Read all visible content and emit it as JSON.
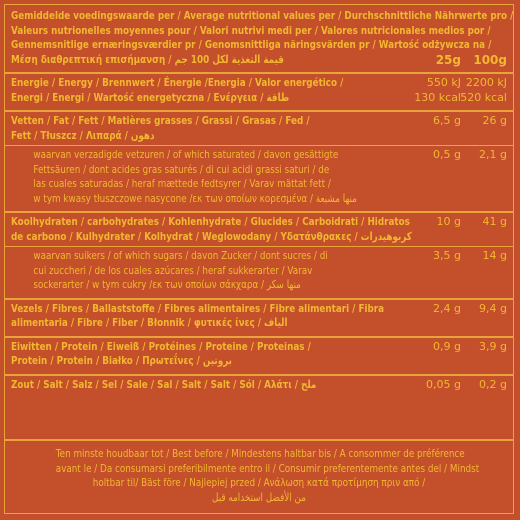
{
  "header": {
    "lines": [
      "Gemiddelde voedingswaarde per / Average nutritional values per / Durchschnittliche Nährwerte pro /",
      "Valeurs nutrionelles moyennes pour / Valori nutrivi medi per / Valores nutricionales medios por /",
      "Gennemsnitlige ernæringsværdier pr / Genomsnittliga näringsvärden pr / Wartość odżywcza na /",
      "Μέση διαθρεπτική επισήμανση / قيمة التغذية لكل 100 جم"
    ],
    "per_25g": "25g",
    "per_100g": "100g"
  },
  "rows": [
    {
      "lines": [
        "Energie / Energy / Brennwert / Énergie  /Energia / Valor energético /",
        "Energi / Energi / Wartość energetyczna / Ενέργεια / طاقة"
      ],
      "per_25g": [
        "550 kJ",
        "130 kcal"
      ],
      "per_100g": [
        "2200 kJ",
        "520 kcal"
      ]
    },
    {
      "lines": [
        "Vetten / Fat / Fett / Matières grasses / Grassi / Grasas / Fed /",
        "Fett / Tłuszcz / Λιπαρά / دهون"
      ],
      "per_25g": [
        "6,5 g"
      ],
      "per_100g": [
        "26 g"
      ]
    },
    {
      "lines": [
        "waarvan verzadigde vetzuren / of which saturated / davon gesättigte",
        "Fettsäuren / dont acides gras saturés / di cui acidi grassi saturi / de",
        "las cuales saturadas / heraf mættede fedtsyrer / Varav mättat fett /",
        "w tym kwasy tłuszczowe nasycone /εκ των οποίων κορεσμένα / منها مشبعة"
      ],
      "per_25g": [
        "0,5 g"
      ],
      "per_100g": [
        "2,1 g"
      ]
    },
    {
      "lines": [
        "Koolhydraten / carbohydrates / Kohlenhydrate / Glucides / Carboidrati / Hidratos",
        "de carbono / Kulhydrater / Kolhydrat / Weglowodany / Υδατάνθρακες / كربوهيدرات"
      ],
      "per_25g": [
        "10 g"
      ],
      "per_100g": [
        "41 g"
      ]
    },
    {
      "lines": [
        "waarvan suikers / of which sugars / davon Zucker / dont sucres / di",
        "cui zuccheri / de los cuales azúcares / heraf sukkerarter / Varav",
        "sockerarter / w tym cukry /εκ των οποίων σάκχαρα / منها سكر"
      ],
      "per_25g": [
        "3,5 g"
      ],
      "per_100g": [
        "14 g"
      ]
    },
    {
      "lines": [
        "Vezels / Fibres / Ballaststoffe / Fibres alimentaires / Fibre alimentari / Fibra",
        "alimentaria / Fibre / Fiber / Błonnik / φυτικές ίνες / الياف"
      ],
      "per_25g": [
        "2,4 g"
      ],
      "per_100g": [
        "9,4 g"
      ]
    },
    {
      "lines": [
        "Eiwitten / Protein / Eiweiß / Protéines / Proteine / Proteinas /",
        "Protein / Protein / Białko / Πρωτεΐνες / بروتين"
      ],
      "per_25g": [
        "0,9 g"
      ],
      "per_100g": [
        "3,9 g"
      ]
    },
    {
      "lines": [
        "Zout / Salt / Salz / Sel / Sale / Sal / Salt / Salt / Sól / Αλάτι / ملح"
      ],
      "per_25g": [
        "0,05 g"
      ],
      "per_100g": [
        "0,2 g"
      ]
    }
  ],
  "footer": {
    "lines": [
      "Ten minste houdbaar tot / Best before / Mindestens haltbar bis / A consommer de préférence",
      "avant le / Da consumarsi preferibilmente entro il / Consumir preferentemente antes del / Mindst",
      "holtbar til/ Bäst före  / Najlepiej przed / Ανάλωση κατά προτίμηση πριν από /",
      "من الأفضل استخدامه قبل"
    ]
  }
}
